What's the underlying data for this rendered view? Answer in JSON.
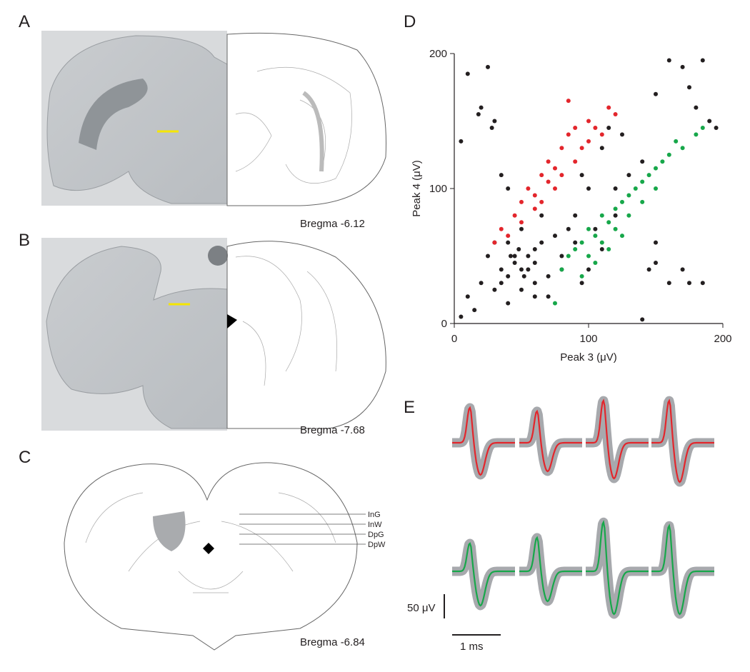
{
  "panels": {
    "A": {
      "label": "A",
      "caption": "Bregma -6.12"
    },
    "B": {
      "label": "B",
      "caption": "Bregma -7.68"
    },
    "C": {
      "label": "C",
      "caption": "Bregma -6.84",
      "layers": [
        "InG",
        "InW",
        "DpG",
        "DpW"
      ]
    },
    "E": {
      "label": "E",
      "scale_y": "50 μV",
      "scale_x": "1 ms",
      "colors": [
        "#e3262c",
        "#17a74a"
      ],
      "band_color": "#a7a9ad"
    }
  },
  "chart_data": {
    "type": "scatter",
    "label": "D",
    "xlabel": "Peak 3 (μV)",
    "ylabel": "Peak 4 (μV)",
    "xlim": [
      0,
      200
    ],
    "ylim": [
      0,
      200
    ],
    "xticks": [
      0,
      100,
      200
    ],
    "yticks": [
      0,
      100,
      200
    ],
    "series": [
      {
        "color": "#231f20",
        "x": [
          10,
          25,
          18,
          20,
          28,
          30,
          5,
          35,
          40,
          160,
          170,
          185,
          190,
          195,
          175,
          180,
          150,
          140,
          145,
          150,
          160,
          170,
          175,
          185,
          150,
          120,
          110,
          100,
          95,
          15,
          10,
          5,
          20,
          30,
          40,
          60,
          70,
          80,
          85,
          90,
          100,
          110,
          75,
          60,
          55,
          45,
          35,
          40,
          50,
          65,
          25,
          30,
          60,
          80,
          90,
          105,
          120,
          130,
          140,
          125,
          115,
          95,
          70,
          50,
          45,
          55,
          40,
          50,
          35,
          60,
          65,
          48,
          52,
          42
        ],
        "values": [
          185,
          190,
          155,
          160,
          145,
          150,
          135,
          110,
          100,
          195,
          190,
          195,
          150,
          145,
          175,
          160,
          170,
          3,
          40,
          45,
          30,
          40,
          30,
          30,
          60,
          80,
          55,
          40,
          30,
          10,
          20,
          5,
          30,
          25,
          15,
          20,
          35,
          50,
          70,
          80,
          100,
          130,
          65,
          55,
          40,
          50,
          40,
          60,
          70,
          80,
          50,
          60,
          30,
          40,
          60,
          70,
          100,
          110,
          120,
          140,
          145,
          110,
          20,
          25,
          45,
          50,
          35,
          40,
          30,
          45,
          60,
          55,
          35,
          50
        ]
      },
      {
        "color": "#e3262c",
        "x": [
          30,
          35,
          40,
          45,
          50,
          55,
          60,
          65,
          70,
          75,
          80,
          85,
          90,
          95,
          100,
          105,
          110,
          115,
          120,
          85,
          60,
          50,
          75,
          70,
          90,
          100,
          65,
          80
        ],
        "values": [
          60,
          70,
          65,
          80,
          90,
          100,
          85,
          110,
          120,
          115,
          130,
          140,
          145,
          130,
          150,
          145,
          140,
          160,
          155,
          165,
          95,
          75,
          100,
          105,
          120,
          135,
          90,
          110
        ]
      },
      {
        "color": "#17a74a",
        "x": [
          80,
          85,
          90,
          95,
          100,
          105,
          110,
          115,
          120,
          125,
          130,
          135,
          140,
          145,
          150,
          155,
          160,
          165,
          170,
          180,
          185,
          100,
          110,
          120,
          130,
          95,
          105,
          115,
          140,
          150,
          125,
          75
        ],
        "values": [
          40,
          50,
          55,
          60,
          70,
          65,
          80,
          75,
          85,
          90,
          95,
          100,
          105,
          110,
          115,
          120,
          125,
          135,
          130,
          140,
          145,
          50,
          60,
          70,
          80,
          35,
          45,
          55,
          90,
          100,
          65,
          15
        ]
      }
    ]
  }
}
